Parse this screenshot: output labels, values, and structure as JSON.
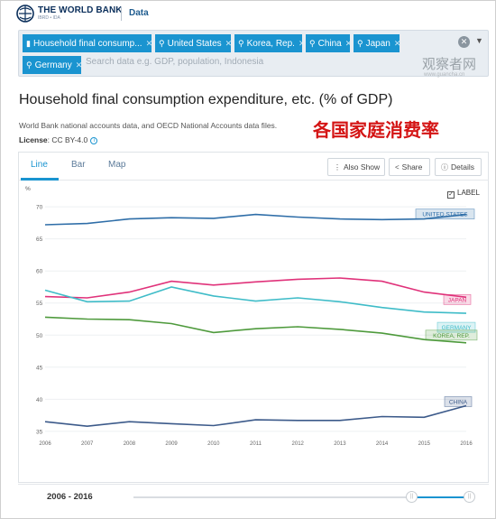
{
  "header": {
    "brand": "THE WORLD BANK",
    "brand_sub": "IBRD • IDA",
    "section": "Data"
  },
  "filters": {
    "chips": [
      "Household final consump...",
      "United States",
      "Korea, Rep.",
      "China",
      "Japan",
      "Germany"
    ],
    "search_placeholder": "Search data e.g. GDP, population, Indonesia"
  },
  "watermark": {
    "text": "观察者网",
    "url": "www.guancha.cn"
  },
  "page": {
    "title": "Household final consumption expenditure, etc. (% of GDP)",
    "source": "World Bank national accounts data, and OECD National Accounts data files.",
    "license_label": "License",
    "license_value": ": CC BY-4.0",
    "overlay_caption": "各国家庭消费率"
  },
  "tabs": [
    "Line",
    "Bar",
    "Map"
  ],
  "actions": {
    "also_show": "Also Show",
    "share": "Share",
    "details": "Details"
  },
  "label_toggle": "LABEL",
  "range": {
    "label": "2006 - 2016"
  },
  "colors": {
    "accent": "#1a94d0",
    "united_states": "#2f6ea8",
    "japan": "#e0327a",
    "germany": "#3fbcc8",
    "korea": "#4e9a3c",
    "china": "#3c5a8a"
  },
  "chart_data": {
    "type": "line",
    "title": "Household final consumption expenditure, etc. (% of GDP)",
    "ylabel": "%",
    "xlabel": "",
    "x": [
      2006,
      2007,
      2008,
      2009,
      2010,
      2011,
      2012,
      2013,
      2014,
      2015,
      2016
    ],
    "ylim": [
      34,
      71
    ],
    "yticks": [
      35,
      40,
      45,
      50,
      55,
      60,
      65,
      70
    ],
    "grid": true,
    "series": [
      {
        "name": "UNITED STATES",
        "values": [
          67.2,
          67.4,
          68.1,
          68.3,
          68.2,
          68.8,
          68.4,
          68.1,
          68.0,
          68.1,
          68.8
        ]
      },
      {
        "name": "JAPAN",
        "values": [
          56.0,
          55.8,
          56.7,
          58.4,
          57.8,
          58.3,
          58.7,
          58.9,
          58.4,
          56.7,
          55.9
        ]
      },
      {
        "name": "GERMANY",
        "values": [
          57.0,
          55.2,
          55.3,
          57.5,
          56.1,
          55.3,
          55.8,
          55.2,
          54.3,
          53.6,
          53.4
        ]
      },
      {
        "name": "KOREA, REP.",
        "values": [
          52.8,
          52.5,
          52.4,
          51.8,
          50.4,
          51.0,
          51.3,
          50.9,
          50.3,
          49.3,
          48.8
        ]
      },
      {
        "name": "CHINA",
        "values": [
          36.5,
          35.8,
          36.5,
          36.2,
          35.9,
          36.8,
          36.7,
          36.7,
          37.3,
          37.2,
          39.0
        ]
      }
    ]
  }
}
